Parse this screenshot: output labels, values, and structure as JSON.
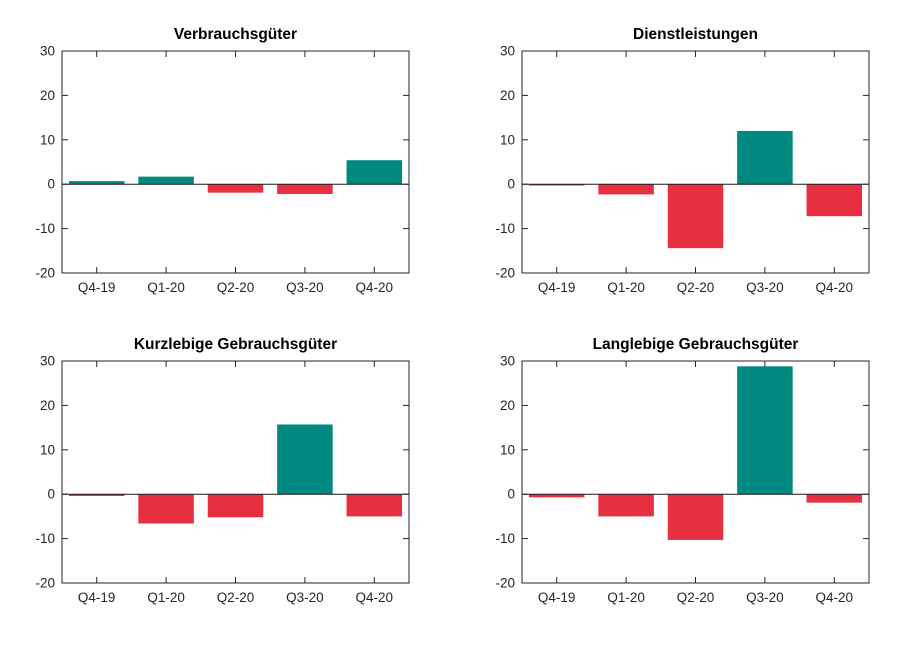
{
  "figure": {
    "background": "#ffffff",
    "description": "2x2 grid of quarterly bar charts"
  },
  "colors": {
    "positive_bar": "#008980",
    "negative_bar": "#e6303f",
    "axis": "#262626",
    "tick_text": "#333333",
    "title_text": "#000000",
    "zero_line": "#1a1a1a"
  },
  "chart_data": [
    {
      "type": "bar",
      "title": "Verbrauchsgüter",
      "categories": [
        "Q4-19",
        "Q1-20",
        "Q2-20",
        "Q3-20",
        "Q4-20"
      ],
      "values": [
        0.7,
        1.7,
        -1.9,
        -2.2,
        5.4
      ],
      "xlabel": "",
      "ylabel": "",
      "ylim": [
        -20,
        30
      ],
      "yticks": [
        -20,
        -10,
        0,
        10,
        20,
        30
      ],
      "grid": false,
      "legend": "none",
      "bar_width_fraction": 0.8,
      "color_rule": "teal if positive, red if negative"
    },
    {
      "type": "bar",
      "title": "Dienstleistungen",
      "categories": [
        "Q4-19",
        "Q1-20",
        "Q2-20",
        "Q3-20",
        "Q4-20"
      ],
      "values": [
        -0.3,
        -2.3,
        -14.4,
        12.0,
        -7.2
      ],
      "xlabel": "",
      "ylabel": "",
      "ylim": [
        -20,
        30
      ],
      "yticks": [
        -20,
        -10,
        0,
        10,
        20,
        30
      ],
      "grid": false,
      "legend": "none",
      "bar_width_fraction": 0.8,
      "color_rule": "teal if positive, red if negative"
    },
    {
      "type": "bar",
      "title": "Kurzlebige Gebrauchsgüter",
      "categories": [
        "Q4-19",
        "Q1-20",
        "Q2-20",
        "Q3-20",
        "Q4-20"
      ],
      "values": [
        -0.4,
        -6.6,
        -5.2,
        15.7,
        -5.0
      ],
      "xlabel": "",
      "ylabel": "",
      "ylim": [
        -20,
        30
      ],
      "yticks": [
        -20,
        -10,
        0,
        10,
        20,
        30
      ],
      "grid": false,
      "legend": "none",
      "bar_width_fraction": 0.8,
      "color_rule": "teal if positive, red if negative"
    },
    {
      "type": "bar",
      "title": "Langlebige Gebrauchsgüter",
      "categories": [
        "Q4-19",
        "Q1-20",
        "Q2-20",
        "Q3-20",
        "Q4-20"
      ],
      "values": [
        -0.7,
        -5.0,
        -10.3,
        28.8,
        -1.9
      ],
      "xlabel": "",
      "ylabel": "",
      "ylim": [
        -20,
        30
      ],
      "yticks": [
        -20,
        -10,
        0,
        10,
        20,
        30
      ],
      "grid": false,
      "legend": "none",
      "bar_width_fraction": 0.8,
      "color_rule": "teal if positive, red if negative"
    }
  ]
}
